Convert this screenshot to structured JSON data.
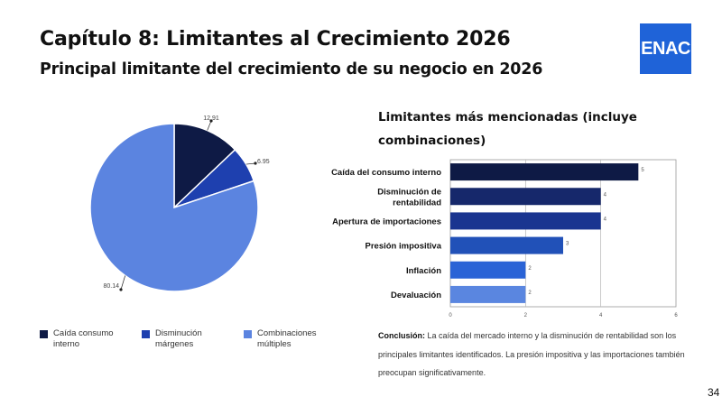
{
  "slide": {
    "title": "Capítulo 8: Limitantes al Crecimiento 2026",
    "subtitle": "Principal limitante del crecimiento de su negocio en 2026",
    "logo_text": "ENAC",
    "page_number": "34",
    "conclusion_label": "Conclusión:",
    "conclusion_text": " La caída del mercado interno y la disminución de rentabilidad son los principales limitantes identificados. La presión impositiva y las importaciones también preocupan significativamente."
  },
  "colors": {
    "logo_bg": "#1f63d8",
    "pie": [
      "#0e1a45",
      "#1e40af",
      "#5b84e0"
    ],
    "bars": [
      "#0e1a45",
      "#16286b",
      "#1a3590",
      "#2151b8",
      "#2a63d6",
      "#5a86e0"
    ]
  },
  "chart_data": [
    {
      "type": "pie",
      "title": "",
      "labels": [
        "Caída consumo interno",
        "Disminución márgenes",
        "Combinaciones múltiples"
      ],
      "values": [
        12.91,
        6.95,
        80.14
      ],
      "value_labels": [
        "12.91",
        "6.95",
        "80.14"
      ],
      "legend_position": "bottom"
    },
    {
      "type": "bar",
      "orientation": "horizontal",
      "title": "Limitantes más mencionadas (incluye combinaciones)",
      "categories": [
        [
          "Caída del consumo interno"
        ],
        [
          "Disminución de",
          "rentabilidad"
        ],
        [
          "Apertura de importaciones"
        ],
        [
          "Presión impositiva"
        ],
        [
          "Inflación"
        ],
        [
          "Devaluación"
        ]
      ],
      "values": [
        5,
        4,
        4,
        3,
        2,
        2
      ],
      "xlim": [
        0,
        6
      ],
      "xticks": [
        "0",
        "2",
        "4",
        "6"
      ],
      "grid": true,
      "xlabel": "",
      "ylabel": ""
    }
  ]
}
